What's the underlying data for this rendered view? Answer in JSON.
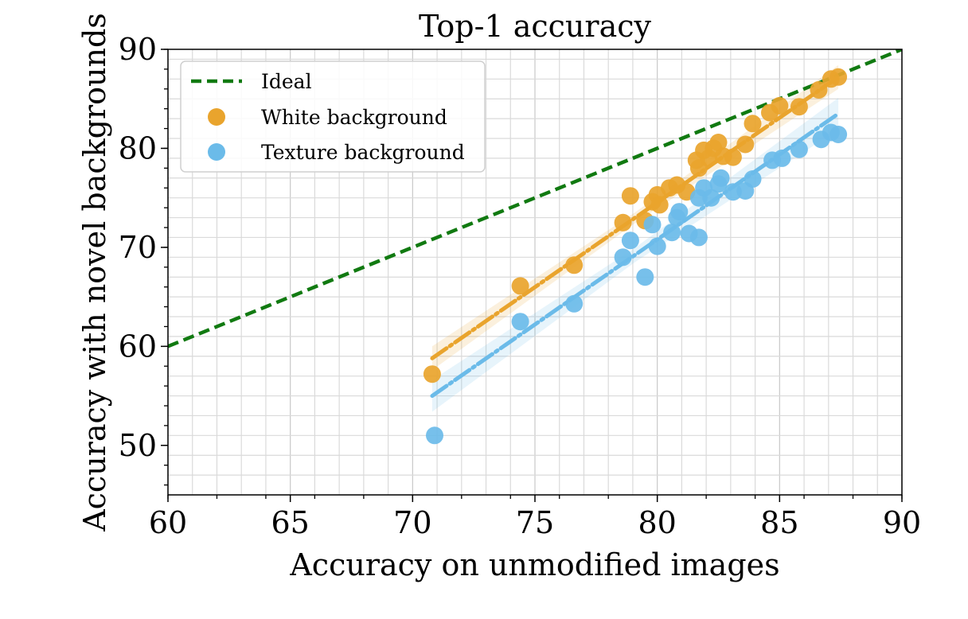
{
  "chart_data": {
    "type": "scatter",
    "title": "Top-1 accuracy",
    "xlabel": "Accuracy on unmodified images",
    "ylabel": "Accuracy with novel backgrounds",
    "xlim": [
      60,
      90
    ],
    "ylim": [
      45,
      90
    ],
    "xticks": [
      "60",
      "65",
      "70",
      "75",
      "80",
      "85",
      "90"
    ],
    "yticks": [
      "50",
      "60",
      "70",
      "80",
      "90"
    ],
    "grid": true,
    "legend_position": "top-left",
    "colors": {
      "ideal": "#117a11",
      "white": "#e9a42d",
      "texture": "#6bbbe9"
    },
    "ideal": {
      "name": "Ideal",
      "x": [
        60,
        90
      ],
      "y": [
        60,
        90
      ]
    },
    "series": [
      {
        "name": "White background",
        "fit": {
          "x": [
            70.8,
            87.4
          ],
          "y": [
            58.8,
            87.2
          ],
          "band": 1.2
        },
        "points": [
          [
            70.8,
            57.2
          ],
          [
            74.4,
            66.1
          ],
          [
            76.6,
            68.2
          ],
          [
            78.6,
            72.5
          ],
          [
            78.9,
            75.2
          ],
          [
            79.5,
            72.7
          ],
          [
            79.8,
            74.6
          ],
          [
            80.0,
            75.3
          ],
          [
            80.1,
            74.3
          ],
          [
            80.5,
            76.0
          ],
          [
            80.8,
            76.3
          ],
          [
            81.2,
            75.6
          ],
          [
            81.6,
            78.8
          ],
          [
            81.7,
            78.0
          ],
          [
            81.9,
            79.8
          ],
          [
            82.1,
            79.0
          ],
          [
            82.3,
            80.0
          ],
          [
            82.5,
            80.6
          ],
          [
            82.7,
            79.2
          ],
          [
            83.1,
            79.1
          ],
          [
            83.6,
            80.4
          ],
          [
            83.9,
            82.5
          ],
          [
            84.6,
            83.6
          ],
          [
            85.0,
            84.3
          ],
          [
            85.8,
            84.2
          ],
          [
            86.6,
            85.9
          ],
          [
            87.1,
            87.0
          ],
          [
            87.4,
            87.2
          ]
        ]
      },
      {
        "name": "Texture background",
        "fit": {
          "x": [
            70.8,
            87.4
          ],
          "y": [
            55.0,
            83.5
          ],
          "band": 1.6
        },
        "points": [
          [
            70.9,
            51.0
          ],
          [
            74.4,
            62.5
          ],
          [
            76.6,
            64.3
          ],
          [
            78.6,
            69.0
          ],
          [
            78.9,
            70.7
          ],
          [
            79.5,
            67.0
          ],
          [
            79.8,
            72.3
          ],
          [
            80.0,
            70.1
          ],
          [
            80.6,
            71.5
          ],
          [
            80.8,
            73.0
          ],
          [
            80.9,
            73.6
          ],
          [
            81.3,
            71.4
          ],
          [
            81.7,
            71.0
          ],
          [
            81.7,
            75.0
          ],
          [
            81.9,
            76.0
          ],
          [
            82.2,
            75.0
          ],
          [
            82.5,
            76.4
          ],
          [
            82.6,
            77.0
          ],
          [
            83.1,
            75.6
          ],
          [
            83.6,
            75.7
          ],
          [
            83.9,
            76.9
          ],
          [
            84.7,
            78.8
          ],
          [
            85.1,
            79.0
          ],
          [
            85.8,
            79.9
          ],
          [
            86.7,
            80.9
          ],
          [
            87.1,
            81.6
          ],
          [
            87.4,
            81.4
          ]
        ]
      }
    ]
  }
}
